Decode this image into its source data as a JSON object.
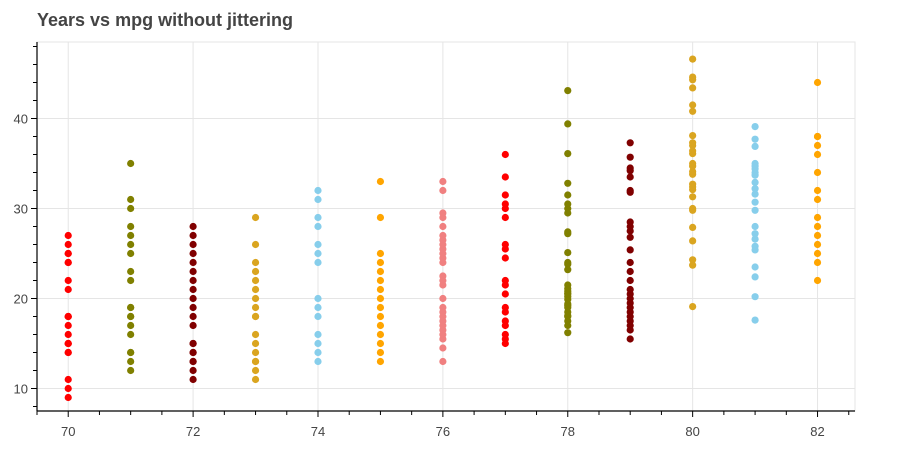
{
  "chart_data": {
    "type": "scatter",
    "title": "Years vs mpg without jittering",
    "xlabel": "",
    "ylabel": "",
    "xlim": [
      69.5,
      82.6
    ],
    "ylim": [
      7.5,
      48.5
    ],
    "grid": true,
    "x_ticks": [
      70,
      72,
      74,
      76,
      78,
      80,
      82
    ],
    "y_ticks": [
      10,
      20,
      30,
      40
    ],
    "series": [
      {
        "x": 70,
        "color": "#ff0000",
        "values": [
          9,
          10,
          11,
          14,
          14,
          15,
          15,
          15,
          16,
          17,
          18,
          18,
          18,
          21,
          22,
          24,
          24,
          25,
          25,
          26,
          27
        ]
      },
      {
        "x": 71,
        "color": "#808000",
        "values": [
          12,
          13,
          14,
          14,
          16,
          17,
          18,
          18,
          19,
          19,
          22,
          23,
          25,
          26,
          27,
          28,
          30,
          31,
          35
        ]
      },
      {
        "x": 72,
        "color": "#800000",
        "values": [
          11,
          12,
          13,
          13,
          14,
          14,
          15,
          15,
          17,
          18,
          19,
          20,
          21,
          22,
          23,
          24,
          25,
          26,
          27,
          28
        ]
      },
      {
        "x": 73,
        "color": "#daa520",
        "values": [
          11,
          12,
          13,
          13,
          14,
          15,
          16,
          18,
          18,
          19,
          20,
          21,
          22,
          23,
          24,
          26,
          29
        ]
      },
      {
        "x": 74,
        "color": "#87ceeb",
        "values": [
          13,
          14,
          15,
          16,
          18,
          19,
          20,
          24,
          25,
          26,
          28,
          29,
          31,
          32
        ]
      },
      {
        "x": 75,
        "color": "#ffa500",
        "values": [
          13,
          14,
          15,
          16,
          17,
          18,
          19,
          20,
          21,
          22,
          23,
          24,
          25,
          29,
          33
        ]
      },
      {
        "x": 76,
        "color": "#f08080",
        "values": [
          13,
          14.5,
          15.5,
          16,
          16.5,
          17,
          17.5,
          18,
          18.5,
          19,
          20,
          21.5,
          22,
          22.5,
          24,
          24.5,
          25,
          25.5,
          26,
          26.5,
          27,
          28,
          29,
          29.5,
          32,
          33
        ]
      },
      {
        "x": 77,
        "color": "#ff0000",
        "values": [
          15,
          15.5,
          16,
          17,
          17.5,
          18.5,
          19,
          20.5,
          21.5,
          22,
          24.5,
          25.5,
          26,
          29,
          30,
          30.5,
          31.5,
          33.5,
          36
        ]
      },
      {
        "x": 78,
        "color": "#808000",
        "values": [
          16.2,
          17,
          17.5,
          18,
          18.1,
          18.5,
          19,
          19.2,
          19.4,
          19.9,
          20.2,
          20.5,
          20.6,
          20.8,
          21.1,
          21.5,
          23.2,
          23.8,
          24,
          25.1,
          27.2,
          27.4,
          29.5,
          30,
          30.5,
          31.5,
          32.8,
          36.1,
          39.4,
          43.1
        ]
      },
      {
        "x": 79,
        "color": "#800000",
        "values": [
          15.5,
          16.5,
          17,
          17.5,
          18,
          18.5,
          19,
          19.5,
          20,
          20.5,
          21,
          22,
          23,
          24,
          25.4,
          26.8,
          27.5,
          28,
          28.5,
          31.8,
          32,
          33.5,
          34.2,
          34.5,
          35.7,
          37.3
        ]
      },
      {
        "x": 80,
        "color": "#daa520",
        "values": [
          19.1,
          23.7,
          24.3,
          26.4,
          27.9,
          29.8,
          30,
          31.3,
          32.1,
          32.4,
          32.7,
          33.8,
          34.1,
          34.7,
          35,
          36.1,
          36.4,
          37,
          37.3,
          38.1,
          40.8,
          41.5,
          43.4,
          44.3,
          44.6,
          46.6
        ]
      },
      {
        "x": 81,
        "color": "#87ceeb",
        "values": [
          17.6,
          20.2,
          22.4,
          23.5,
          25.4,
          25.8,
          26.6,
          27.2,
          28,
          29.8,
          30.7,
          31.6,
          32.2,
          32.9,
          33.7,
          34,
          34.4,
          34.7,
          35,
          36.9,
          37.7,
          39.1
        ]
      },
      {
        "x": 82,
        "color": "#ffa500",
        "values": [
          22,
          24,
          25,
          26,
          27,
          28,
          29,
          31,
          32,
          34,
          36,
          37,
          38,
          38,
          44
        ]
      }
    ]
  }
}
